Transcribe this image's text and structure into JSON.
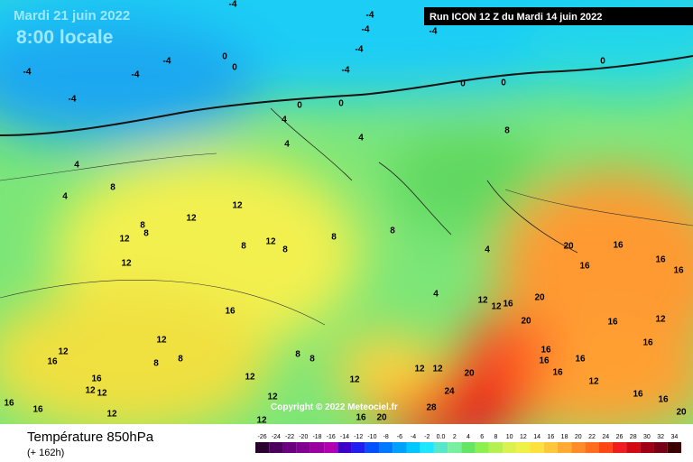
{
  "map": {
    "title_date": "Mardi 21 juin 2022",
    "title_time": "8:00 locale",
    "run": "Run ICON 12 Z du Mardi 14 juin 2022",
    "copyright": "Copyright © 2022 Meteociel.fr",
    "variable": "Température 850hPa",
    "lead": "(+ 162h)",
    "contour_labels": [
      -4,
      -4,
      -4,
      -4,
      -4,
      -4,
      -4,
      -4,
      -4,
      -4,
      0,
      0,
      0,
      0,
      0,
      0,
      0,
      4,
      4,
      4,
      4,
      4,
      8,
      8,
      12,
      12,
      12,
      12,
      8,
      8,
      12,
      8,
      8,
      8,
      8,
      4,
      4,
      16,
      20,
      16,
      16,
      16,
      16,
      20,
      20,
      16,
      12,
      16,
      12,
      8,
      8,
      8,
      8,
      12,
      12,
      12,
      20,
      24,
      28,
      16,
      20,
      12,
      12,
      12,
      16,
      12,
      12,
      16,
      16,
      12,
      16,
      12,
      16,
      16,
      16,
      16,
      16,
      20,
      12,
      12,
      12,
      16,
      16
    ],
    "scale": {
      "ticks": [
        -26,
        -24,
        -22,
        -20,
        -18,
        -16,
        -14,
        -12,
        -10,
        -8,
        -6,
        -4,
        -2,
        {
          "value": 0,
          "label": "0.0"
        },
        2,
        4,
        6,
        8,
        10,
        12,
        14,
        16,
        18,
        20,
        22,
        24,
        26,
        28,
        30,
        32,
        34
      ],
      "colors": [
        "#2a0033",
        "#4b0060",
        "#6a007f",
        "#800090",
        "#9a00a0",
        "#b000b0",
        "#3c00c8",
        "#1e1ef0",
        "#0050ff",
        "#0078ff",
        "#00a0ff",
        "#00c8ff",
        "#1ee6ff",
        "#5ae6c8",
        "#78f0a0",
        "#64e664",
        "#8cf050",
        "#b4f050",
        "#dcf050",
        "#f0f046",
        "#ffe13c",
        "#ffc83c",
        "#ffaa32",
        "#ff8c28",
        "#ff6e1e",
        "#ff4614",
        "#f01e1e",
        "#d20a14",
        "#a00014",
        "#780014",
        "#3c0000"
      ]
    }
  }
}
